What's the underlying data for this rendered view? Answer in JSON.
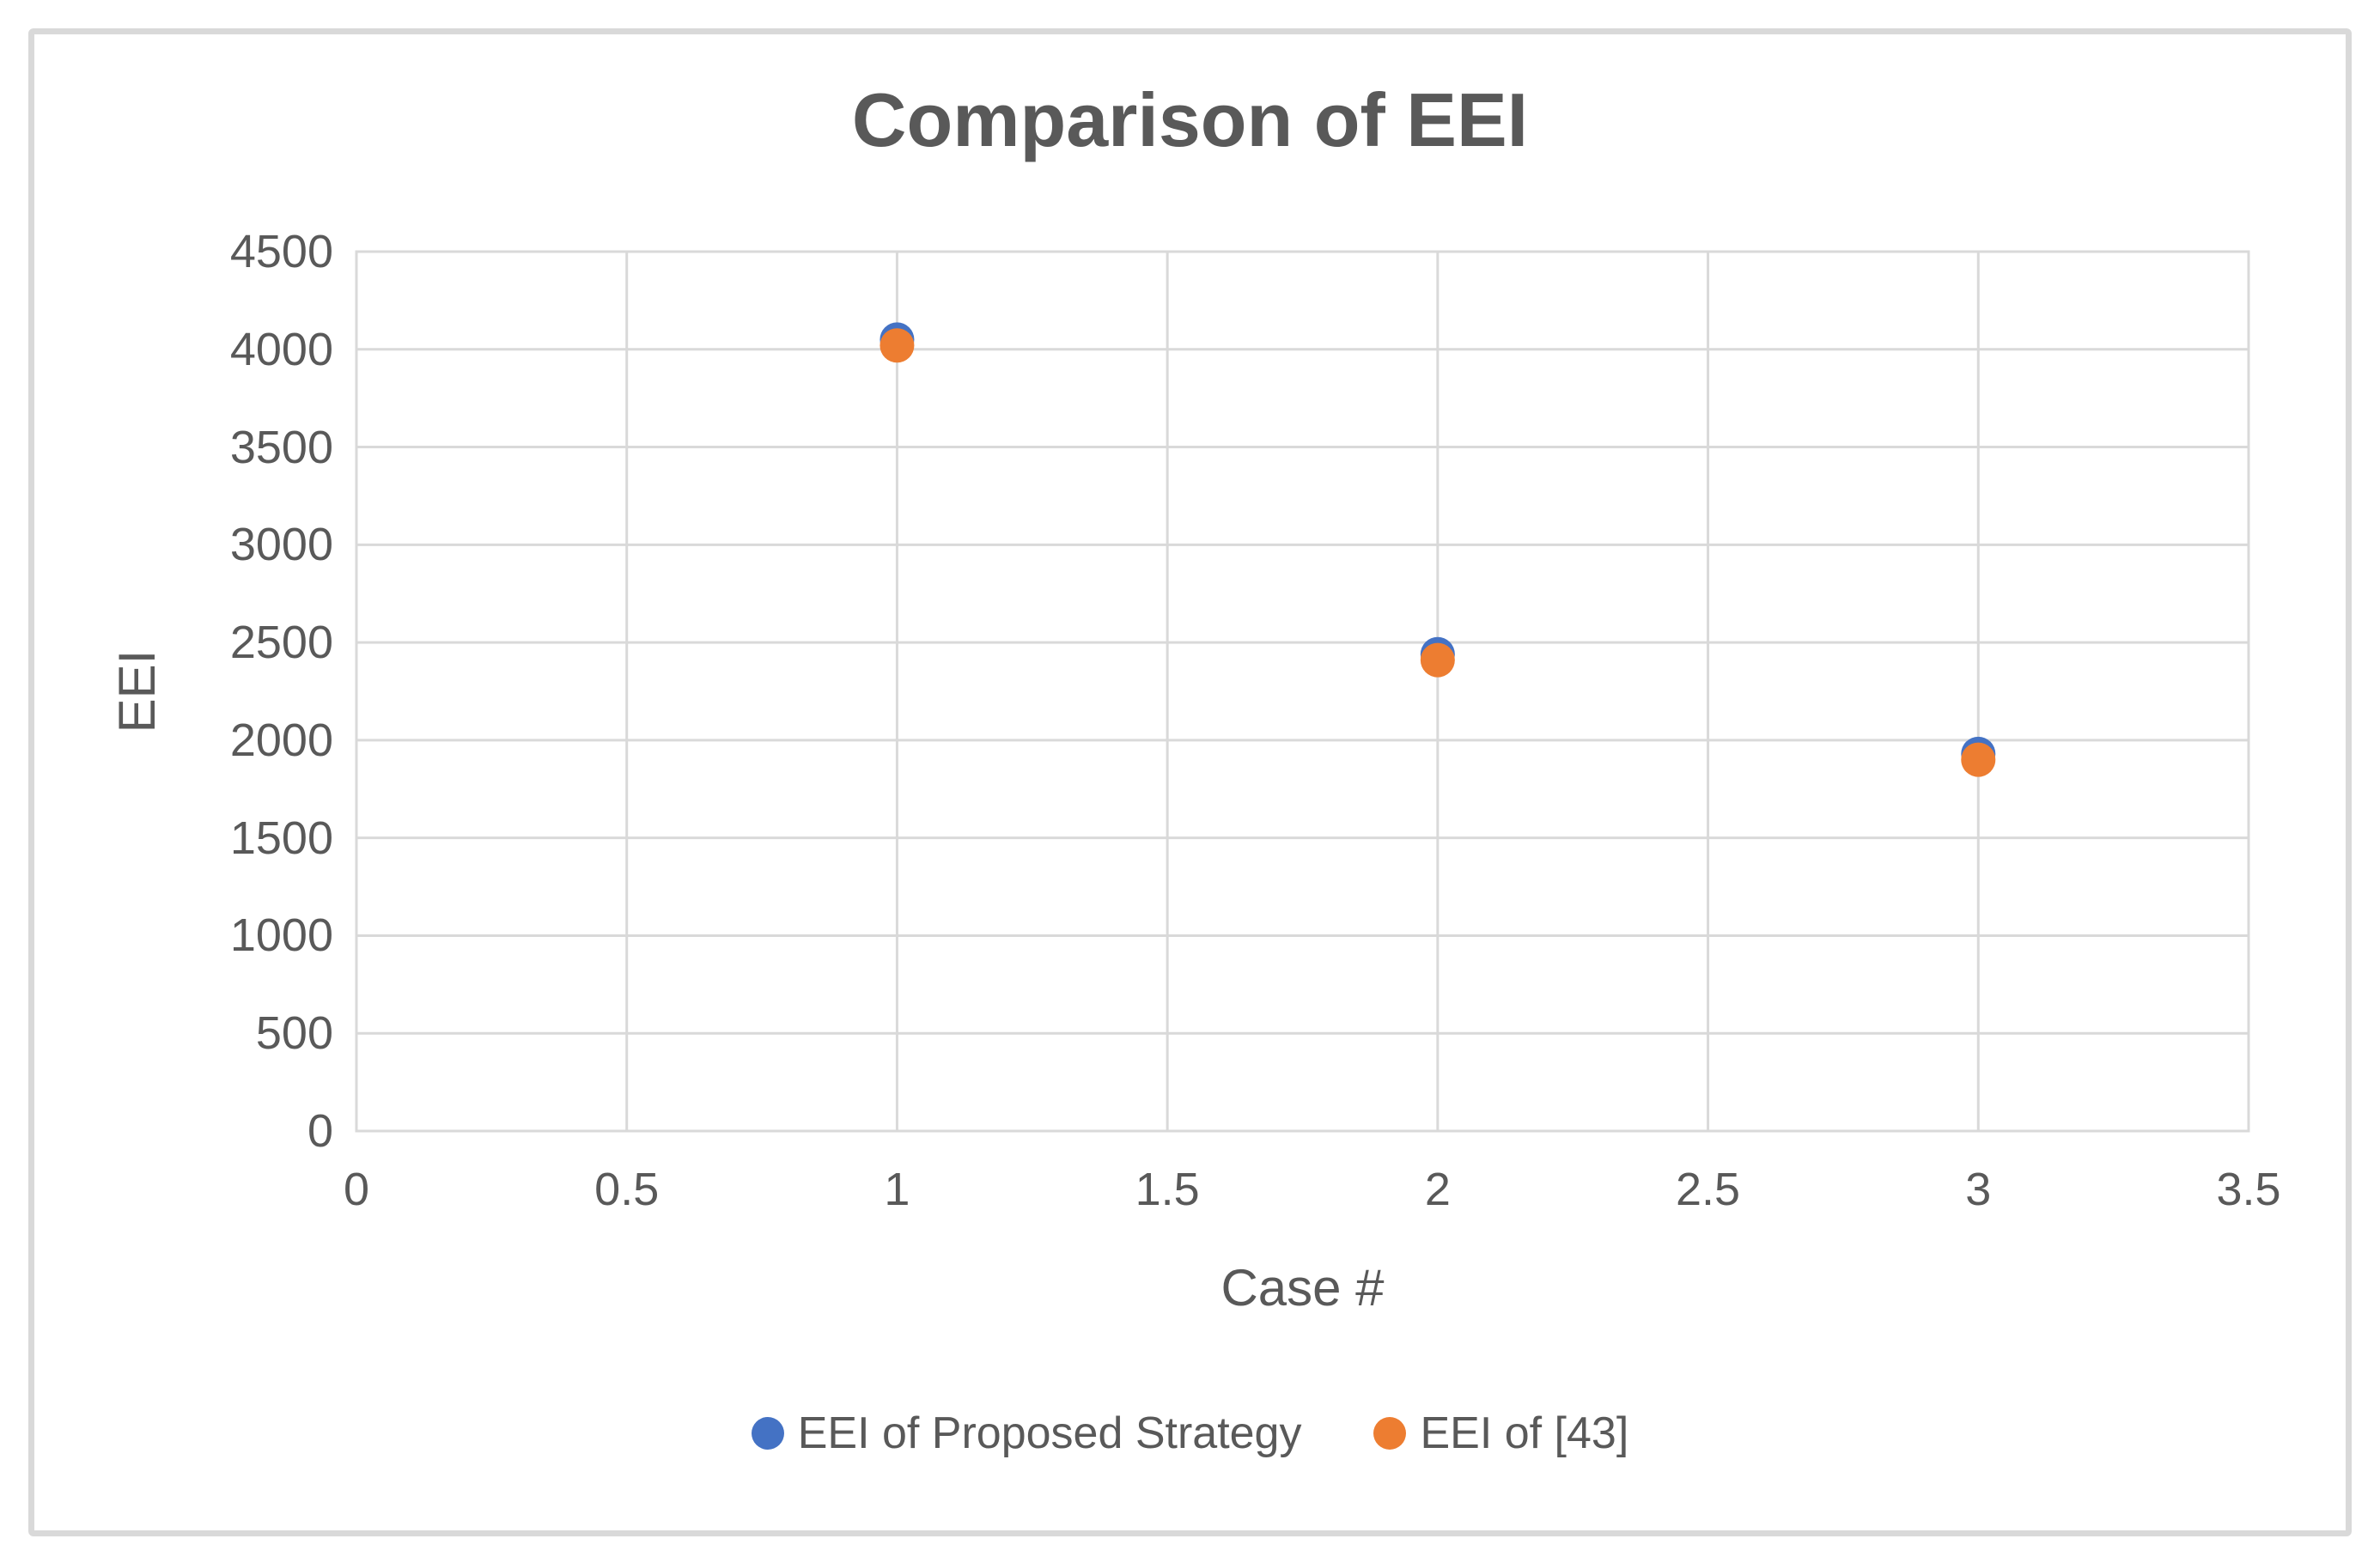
{
  "chart_data": {
    "type": "scatter",
    "title": "Comparison of EEI",
    "xlabel": "Case #",
    "ylabel": "EEI",
    "xlim": [
      0,
      3.5
    ],
    "ylim": [
      0,
      4500
    ],
    "xticks": [
      0,
      0.5,
      1,
      1.5,
      2,
      2.5,
      3,
      3.5
    ],
    "xtick_labels": [
      "0",
      "0.5",
      "1",
      "1.5",
      "2",
      "2.5",
      "3",
      "3.5"
    ],
    "yticks": [
      0,
      500,
      1000,
      1500,
      2000,
      2500,
      3000,
      3500,
      4000,
      4500
    ],
    "ytick_labels": [
      "0",
      "500",
      "1000",
      "1500",
      "2000",
      "2500",
      "3000",
      "3500",
      "4000",
      "4500"
    ],
    "grid": true,
    "legend_position": "bottom-center",
    "x": [
      1,
      2,
      3
    ],
    "series": [
      {
        "name": "EEI of Proposed Strategy",
        "color": "#4472C4",
        "values": [
          4050,
          2440,
          1930
        ]
      },
      {
        "name": "EEI of [43]",
        "color": "#ED7D31",
        "values": [
          4020,
          2410,
          1900
        ]
      }
    ],
    "colors": {
      "text": "#595959",
      "gridline": "#D9D9D9",
      "frame_border": "#D9D9D9",
      "background": "#FFFFFF"
    }
  }
}
